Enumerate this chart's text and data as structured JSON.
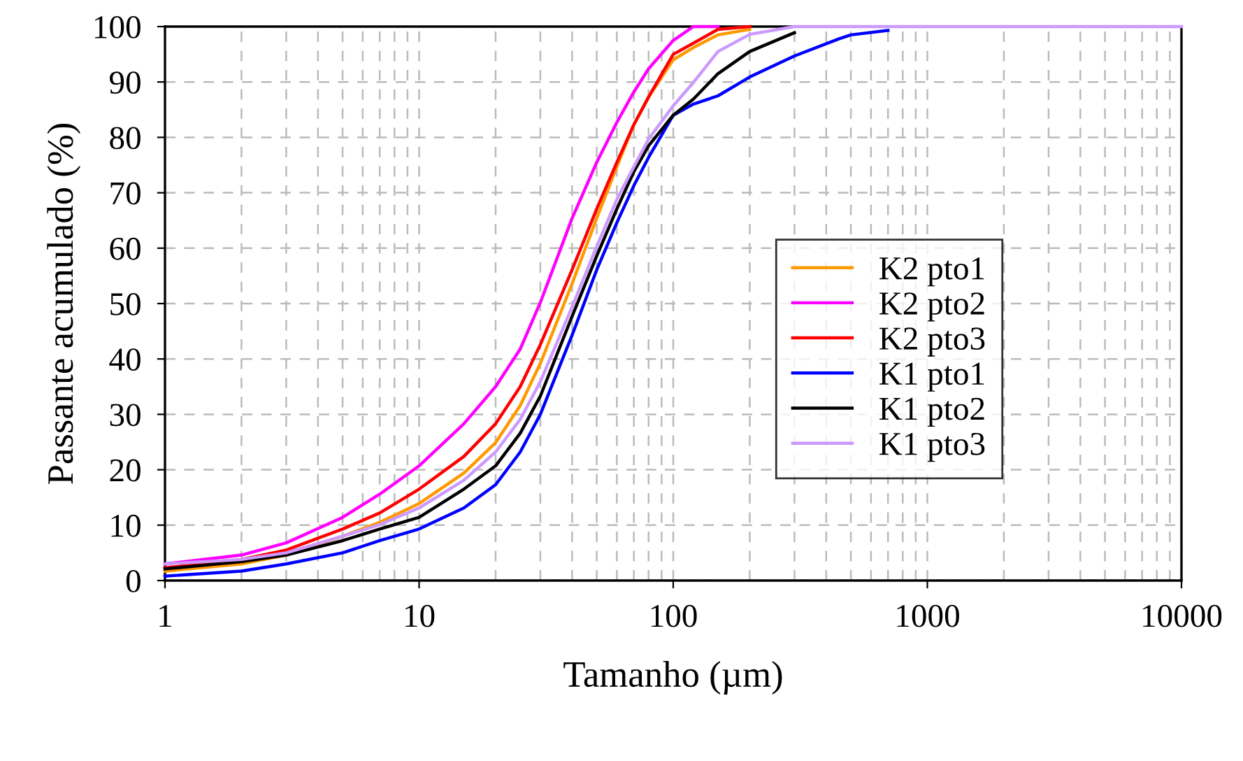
{
  "chart_data": {
    "type": "line",
    "xlabel": "Tamanho (µm)",
    "ylabel": "Passante acumulado (%)",
    "log": "x",
    "grid": true,
    "legend": "center right",
    "line_style": "solid",
    "marker": "none",
    "xlim": [
      1,
      10000
    ],
    "xticks": [
      1,
      10,
      100,
      1000,
      10000
    ],
    "ylim": [
      0,
      100
    ],
    "yticks": [
      0,
      10,
      20,
      30,
      40,
      50,
      60,
      70,
      80,
      90,
      100
    ],
    "x": [
      1,
      2,
      3,
      5,
      7,
      10,
      15,
      20,
      25,
      30,
      40,
      50,
      60,
      70,
      80,
      100,
      120,
      150,
      200,
      300,
      450,
      500,
      700,
      1000,
      10000
    ],
    "series": [
      {
        "name": "K2 pto1",
        "color": "#ff9900",
        "values": [
          1.7,
          3,
          4.6,
          8,
          10.5,
          13.9,
          19.4,
          24.9,
          31.6,
          39.2,
          53.6,
          65.4,
          74.7,
          82.3,
          87.3,
          94,
          96.2,
          98.5,
          99.5,
          null,
          null,
          null,
          null,
          null,
          null
        ]
      },
      {
        "name": "K2 pto2",
        "color": "#ff00ff",
        "values": [
          3,
          4.6,
          6.8,
          11.4,
          15.6,
          20.7,
          28.3,
          35,
          41.8,
          50.2,
          65.4,
          75.5,
          82.7,
          88.2,
          92.4,
          97.5,
          100,
          100,
          null,
          null,
          null,
          null,
          null,
          null,
          null
        ]
      },
      {
        "name": "K2 pto3",
        "color": "#ff0000",
        "values": [
          2.3,
          3.8,
          5.5,
          9.3,
          12.2,
          16.5,
          22.4,
          28.3,
          35,
          42.6,
          56.1,
          67.1,
          75.5,
          82.3,
          87.3,
          95,
          97,
          99.5,
          100,
          null,
          null,
          null,
          null,
          null,
          null
        ]
      },
      {
        "name": "K1 pto1",
        "color": "#0000ff",
        "values": [
          0.8,
          1.7,
          3,
          5,
          7.2,
          9.3,
          13.1,
          17.3,
          23.2,
          30,
          44.3,
          56.1,
          64.6,
          71.3,
          76.4,
          84,
          86,
          87.5,
          90.9,
          94.7,
          97.8,
          98.5,
          99.3,
          null,
          null
        ]
      },
      {
        "name": "K1 pto2",
        "color": "#000000",
        "values": [
          2.1,
          3.4,
          4.6,
          7.2,
          9.3,
          11.4,
          16.5,
          20.7,
          26.6,
          33.3,
          47.7,
          58.6,
          67.1,
          73.8,
          78.5,
          84,
          86.9,
          91.5,
          95.5,
          98.9,
          null,
          null,
          null,
          null,
          null
        ]
      },
      {
        "name": "K1 pto3",
        "color": "#cc99ff",
        "values": [
          3,
          3.8,
          5,
          8,
          10.1,
          13.1,
          18.1,
          23.2,
          29.1,
          35.9,
          49.4,
          60.3,
          68.8,
          74.7,
          79.7,
          85.7,
          89.9,
          95.5,
          98.6,
          100,
          100,
          100,
          100,
          100,
          100
        ]
      }
    ]
  }
}
